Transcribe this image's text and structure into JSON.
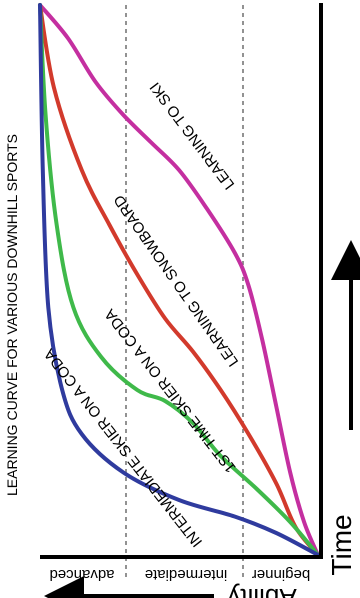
{
  "chart_data": {
    "type": "line",
    "title": "LEARNING CURVE FOR VARIOUS DOWNHILL SPORTS",
    "xlabel": "Ability",
    "ylabel": "Time",
    "x_categories": [
      "advanced",
      "intermediate",
      "beginner"
    ],
    "y_range": [
      0,
      1
    ],
    "grid": "vertical dashed separators between ability levels",
    "series": [
      {
        "name": "LEARNING TO SKI",
        "color": "#c42fa0",
        "points": [
          [
            0.0,
            1.0
          ],
          [
            0.1,
            0.94
          ],
          [
            0.2,
            0.86
          ],
          [
            0.3,
            0.8
          ],
          [
            0.4,
            0.75
          ],
          [
            0.5,
            0.7
          ],
          [
            0.6,
            0.63
          ],
          [
            0.7,
            0.55
          ],
          [
            0.75,
            0.49
          ],
          [
            0.8,
            0.39
          ],
          [
            0.85,
            0.27
          ],
          [
            0.9,
            0.15
          ],
          [
            0.95,
            0.06
          ],
          [
            1.0,
            0.0
          ]
        ]
      },
      {
        "name": "LEARNING TO SNOWBOARD",
        "color": "#d23a2c",
        "points": [
          [
            0.0,
            1.0
          ],
          [
            0.05,
            0.85
          ],
          [
            0.15,
            0.7
          ],
          [
            0.25,
            0.6
          ],
          [
            0.35,
            0.51
          ],
          [
            0.45,
            0.43
          ],
          [
            0.55,
            0.37
          ],
          [
            0.65,
            0.3
          ],
          [
            0.75,
            0.22
          ],
          [
            0.85,
            0.13
          ],
          [
            0.92,
            0.05
          ],
          [
            1.0,
            0.0
          ]
        ]
      },
      {
        "name": "1ST TIME SKIER ON A CODA",
        "color": "#3fb94a",
        "points": [
          [
            0.0,
            1.0
          ],
          [
            0.02,
            0.8
          ],
          [
            0.06,
            0.6
          ],
          [
            0.12,
            0.45
          ],
          [
            0.22,
            0.36
          ],
          [
            0.35,
            0.3
          ],
          [
            0.45,
            0.28
          ],
          [
            0.55,
            0.24
          ],
          [
            0.65,
            0.18
          ],
          [
            0.78,
            0.12
          ],
          [
            0.9,
            0.06
          ],
          [
            1.0,
            0.0
          ]
        ]
      },
      {
        "name": "INTERMEDIATE SKIER ON A CODA",
        "color": "#2f3b9e",
        "points": [
          [
            0.0,
            1.0
          ],
          [
            0.01,
            0.7
          ],
          [
            0.03,
            0.45
          ],
          [
            0.08,
            0.3
          ],
          [
            0.15,
            0.22
          ],
          [
            0.3,
            0.15
          ],
          [
            0.5,
            0.1
          ],
          [
            0.7,
            0.07
          ],
          [
            0.85,
            0.04
          ],
          [
            1.0,
            0.0
          ]
        ]
      }
    ]
  }
}
